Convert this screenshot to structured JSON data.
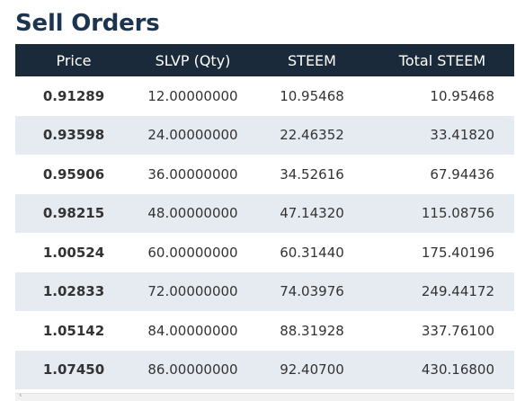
{
  "title": "Sell Orders",
  "table": {
    "headers": [
      "Price",
      "SLVP (Qty)",
      "STEEM",
      "Total STEEM"
    ],
    "rows": [
      [
        "0.91289",
        "12.00000000",
        "10.95468",
        "10.95468"
      ],
      [
        "0.93598",
        "24.00000000",
        "22.46352",
        "33.41820"
      ],
      [
        "0.95906",
        "36.00000000",
        "34.52616",
        "67.94436"
      ],
      [
        "0.98215",
        "48.00000000",
        "47.14320",
        "115.08756"
      ],
      [
        "1.00524",
        "60.00000000",
        "60.31440",
        "175.40196"
      ],
      [
        "1.02833",
        "72.00000000",
        "74.03976",
        "249.44172"
      ],
      [
        "1.05142",
        "84.00000000",
        "88.31928",
        "337.76100"
      ],
      [
        "1.07450",
        "86.00000000",
        "92.40700",
        "430.16800"
      ]
    ]
  },
  "scrollbar": {
    "left_arrow": "‹"
  },
  "colors": {
    "header_bg": "#1b2a3b",
    "title": "#1b3550",
    "alt_row": "#e6ebf1"
  }
}
